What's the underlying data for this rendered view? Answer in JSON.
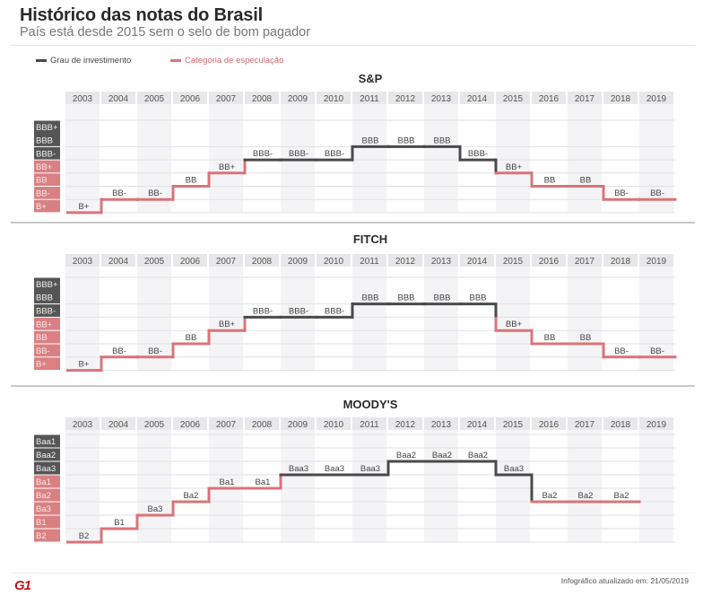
{
  "header": {
    "title": "Histórico das notas do Brasil",
    "subtitle": "País está desde 2015 sem o selo de bom pagador"
  },
  "legend": {
    "investment": {
      "label": "Grau de investimento",
      "color": "#4a4a4a"
    },
    "speculative": {
      "label": "Categoria de especulação",
      "color": "#d97478"
    }
  },
  "colors": {
    "investment_label_bg": "#555555",
    "speculative_label_bg": "#d98083",
    "year_header_bg": "#e8e8ea",
    "alt_column_bg": "#f4f4f6"
  },
  "chart_data": [
    {
      "type": "line",
      "title": "S&P",
      "categories": [
        "2003",
        "2004",
        "2005",
        "2006",
        "2007",
        "2008",
        "2009",
        "2010",
        "2011",
        "2012",
        "2013",
        "2014",
        "2015",
        "2016",
        "2017",
        "2018",
        "2019"
      ],
      "scale": [
        "BBB+",
        "BBB",
        "BBB-",
        "BB+",
        "BB",
        "BB-",
        "B+"
      ],
      "investment_grades": [
        "BBB+",
        "BBB",
        "BBB-"
      ],
      "merged_label_rows": [
        "BBB+",
        "BBB"
      ],
      "values": [
        "B+",
        "BB-",
        "BB-",
        "BB",
        "BB+",
        "BBB-",
        "BBB-",
        "BBB-",
        "BBB",
        "BBB",
        "BBB",
        "BBB-",
        "BB+",
        "BB",
        "BB",
        "BB-",
        "BB-"
      ]
    },
    {
      "type": "line",
      "title": "FITCH",
      "categories": [
        "2003",
        "2004",
        "2005",
        "2006",
        "2007",
        "2008",
        "2009",
        "2010",
        "2011",
        "2012",
        "2013",
        "2014",
        "2015",
        "2016",
        "2017",
        "2018",
        "2019"
      ],
      "scale": [
        "BBB+",
        "BBB",
        "BBB-",
        "BB+",
        "BB",
        "BB-",
        "B+"
      ],
      "investment_grades": [
        "BBB+",
        "BBB",
        "BBB-"
      ],
      "merged_label_rows": [
        "BBB+",
        "BBB"
      ],
      "values": [
        "B+",
        "BB-",
        "BB-",
        "BB",
        "BB+",
        "BBB-",
        "BBB-",
        "BBB-",
        "BBB",
        "BBB",
        "BBB",
        "BBB",
        "BB+",
        "BB",
        "BB",
        "BB-",
        "BB-"
      ]
    },
    {
      "type": "line",
      "title": "MOODY'S",
      "categories": [
        "2003",
        "2004",
        "2005",
        "2006",
        "2007",
        "2008",
        "2009",
        "2010",
        "2011",
        "2012",
        "2013",
        "2014",
        "2015",
        "2016",
        "2017",
        "2018",
        "2019"
      ],
      "scale": [
        "Baa1",
        "Baa2",
        "Baa3",
        "Ba1",
        "Ba2",
        "Ba3",
        "B1",
        "B2"
      ],
      "investment_grades": [
        "Baa1",
        "Baa2",
        "Baa3"
      ],
      "merged_label_rows": [],
      "values": [
        "B2",
        "B1",
        "Ba3",
        "Ba2",
        "Ba1",
        "Ba1",
        "Baa3",
        "Baa3",
        "Baa3",
        "Baa2",
        "Baa2",
        "Baa2",
        "Baa3",
        "Ba2",
        "Ba2",
        "Ba2",
        null
      ]
    }
  ],
  "footer": {
    "logo": "G1",
    "updated": "Infográfico atualizado em: 21/05/2019"
  }
}
